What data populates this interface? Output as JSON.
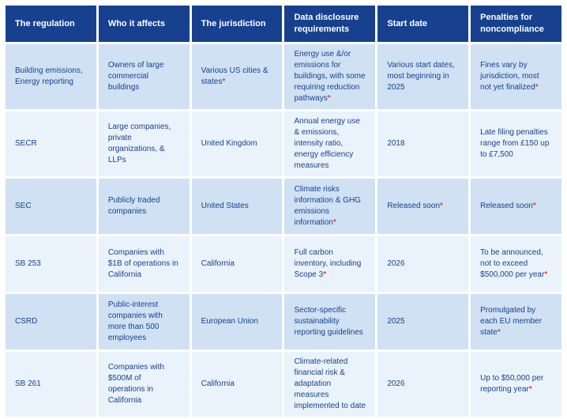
{
  "colors": {
    "header_bg": "#17418f",
    "row_odd_bg": "#cfe1f3",
    "row_even_bg": "#eaf3fb",
    "body_text": "#17418f",
    "header_text": "#ffffff",
    "asterisk": "#e8472b"
  },
  "chart_data": {
    "type": "table",
    "columns": [
      "The regulation",
      "Who it affects",
      "The jurisdiction",
      "Data disclosure requirements",
      "Start date",
      "Penalties for noncompliance"
    ],
    "rows": [
      {
        "cells": [
          {
            "text": "Building emissions, Energy reporting"
          },
          {
            "text": "Owners of large commercial buildings"
          },
          {
            "text": "Various US cities & states",
            "star": "*"
          },
          {
            "text": "Energy use &/or emissions for buildings, with some requiring reduction pathways",
            "star": "*"
          },
          {
            "text": "Various start dates, most beginning in 2025"
          },
          {
            "text": "Fines vary by jurisdiction, most not yet finalized",
            "star": "*"
          }
        ]
      },
      {
        "cells": [
          {
            "text": "SECR"
          },
          {
            "text": "Large companies, private organizations, & LLPs"
          },
          {
            "text": "United Kingdom"
          },
          {
            "text": "Annual energy use & emissions, intensity ratio, energy efficiency measures"
          },
          {
            "text": "2018"
          },
          {
            "text": "Late filing penalties range from £150 up to £7,500"
          }
        ]
      },
      {
        "cells": [
          {
            "text": "SEC"
          },
          {
            "text": "Publicly traded companies"
          },
          {
            "text": "United States"
          },
          {
            "text": "Climate risks information & GHG emissions information",
            "star": "*"
          },
          {
            "text": "Released soon",
            "star": "*"
          },
          {
            "text": "Released soon",
            "star": "*"
          }
        ]
      },
      {
        "cells": [
          {
            "text": "SB 253"
          },
          {
            "text": "Companies with $1B of operations in California"
          },
          {
            "text": "California"
          },
          {
            "text": "Full carbon inventory, including Scope 3",
            "star": "*"
          },
          {
            "text": "2026"
          },
          {
            "text": "To be announced, not to exceed $500,000 per year",
            "star": "*"
          }
        ]
      },
      {
        "cells": [
          {
            "text": "CSRD"
          },
          {
            "text": "Public-interest companies with more than 500 employees"
          },
          {
            "text": "European Union"
          },
          {
            "text": "Sector-specific sustainability reporting guidelines"
          },
          {
            "text": "2025"
          },
          {
            "text": "Promulgated by each EU member state",
            "star": "*"
          }
        ]
      },
      {
        "cells": [
          {
            "text": "SB 261"
          },
          {
            "text": "Companies with $500M of operations in California"
          },
          {
            "text": "California"
          },
          {
            "text": "Climate-related financial risk & adaptation measures implemented to date"
          },
          {
            "text": "2026"
          },
          {
            "text": "Up to $50,000 per reporting year",
            "star": "*"
          }
        ]
      }
    ]
  }
}
